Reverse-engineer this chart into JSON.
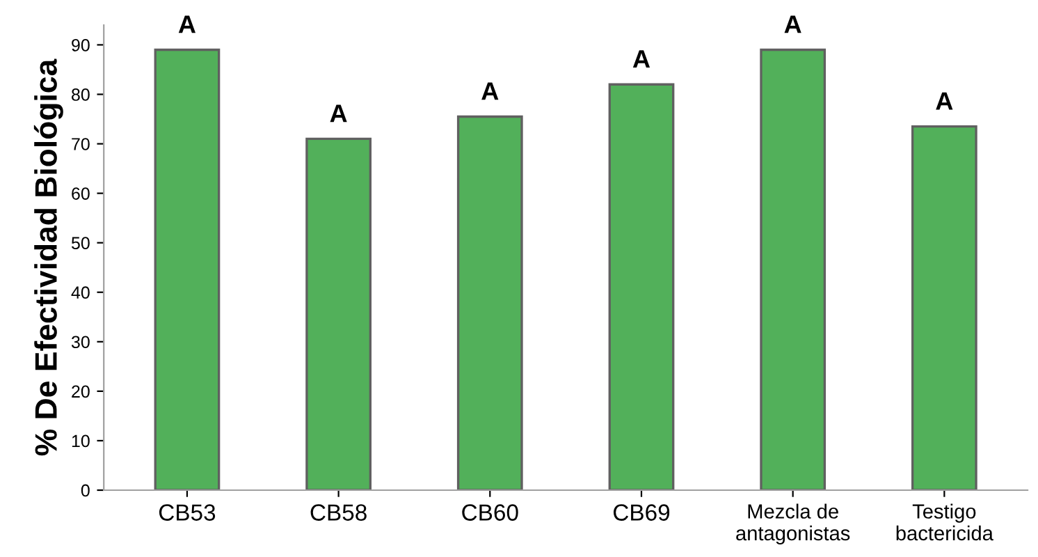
{
  "chart_data": {
    "type": "bar",
    "ylabel": "% De Efectividad Biológica",
    "categories": [
      "CB53",
      "CB58",
      "CB60",
      "CB69",
      "Mezcla de\nantagonistas",
      "Testigo\nbactericida"
    ],
    "values": [
      89,
      71,
      75.5,
      82,
      89,
      73.5
    ],
    "color": "#52b05a",
    "ylim": [
      0,
      94
    ],
    "yticks": [
      0,
      10,
      20,
      30,
      40,
      50,
      60,
      70,
      80,
      90
    ],
    "grid": false,
    "annotations": [
      {
        "text": "A",
        "x": "CB53",
        "y": 89
      },
      {
        "text": "A",
        "x": "CB58",
        "y": 71
      },
      {
        "text": "A",
        "x": "CB60",
        "y": 75.5
      },
      {
        "text": "A",
        "x": "CB69",
        "y": 82
      },
      {
        "text": "A",
        "x": "Mezcla de\nantagonistas",
        "y": 89
      },
      {
        "text": "A",
        "x": "Testigo\nbactericida",
        "y": 73.5
      }
    ]
  }
}
